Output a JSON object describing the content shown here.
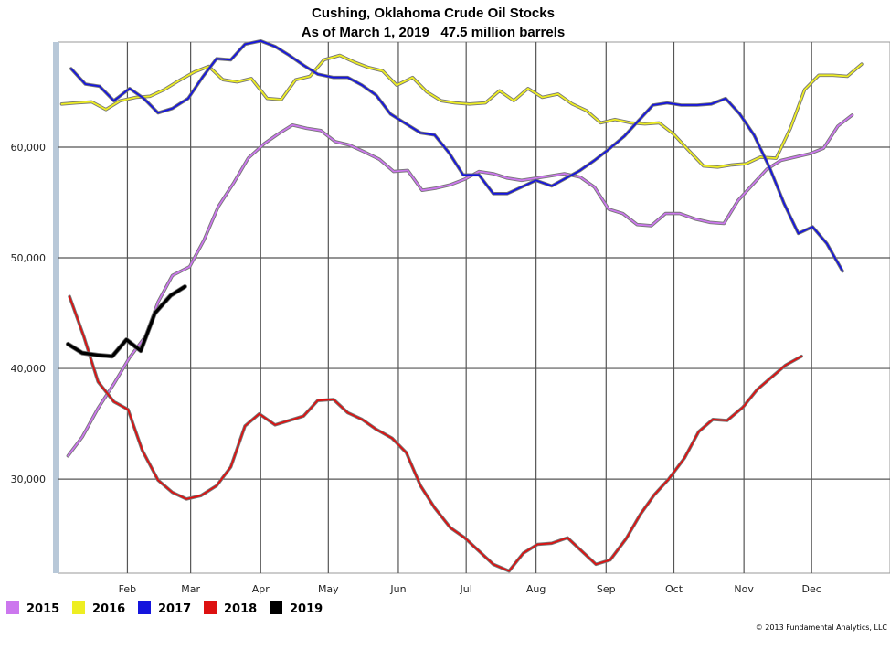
{
  "chart_data": {
    "type": "line",
    "title": "Cushing, Oklahoma Crude Oil Stocks",
    "subtitle": "As of March 1, 2019   47.5 million barrels",
    "credit": "© 2013 Fundamental Analytics, LLC",
    "xlabel": "",
    "ylabel": "",
    "x_unit": "week of year",
    "xlim": [
      0,
      52.6
    ],
    "ylim": [
      21500,
      69500
    ],
    "x_ticks": [
      {
        "label": "Feb",
        "week": 4.36
      },
      {
        "label": "Mar",
        "week": 8.36
      },
      {
        "label": "Apr",
        "week": 12.79
      },
      {
        "label": "May",
        "week": 17.07
      },
      {
        "label": "Jun",
        "week": 21.5
      },
      {
        "label": "Jul",
        "week": 25.79
      },
      {
        "label": "Aug",
        "week": 30.21
      },
      {
        "label": "Sep",
        "week": 34.64
      },
      {
        "label": "Oct",
        "week": 38.93
      },
      {
        "label": "Nov",
        "week": 43.36
      },
      {
        "label": "Dec",
        "week": 47.64
      }
    ],
    "y_ticks": [
      {
        "label": "30,000",
        "value": 30000
      },
      {
        "label": "40,000",
        "value": 40000
      },
      {
        "label": "50,000",
        "value": 50000
      },
      {
        "label": "60,000",
        "value": 60000
      }
    ],
    "grid": true,
    "legend_position": "bottom-left",
    "series": [
      {
        "name": "2015",
        "color": "#cc77ee",
        "values": [
          [
            0.6,
            32100
          ],
          [
            1.5,
            33800
          ],
          [
            2.5,
            36400
          ],
          [
            3.5,
            38600
          ],
          [
            4.5,
            41000
          ],
          [
            5.5,
            42900
          ],
          [
            6.3,
            46000
          ],
          [
            7.2,
            48400
          ],
          [
            8.3,
            49200
          ],
          [
            9.2,
            51600
          ],
          [
            10.1,
            54600
          ],
          [
            11.1,
            56800
          ],
          [
            12.0,
            59000
          ],
          [
            13.0,
            60300
          ],
          [
            13.9,
            61200
          ],
          [
            14.8,
            62000
          ],
          [
            15.7,
            61700
          ],
          [
            16.6,
            61500
          ],
          [
            17.5,
            60500
          ],
          [
            18.4,
            60200
          ],
          [
            19.3,
            59600
          ],
          [
            20.3,
            58900
          ],
          [
            21.2,
            57800
          ],
          [
            22.1,
            57900
          ],
          [
            23.0,
            56100
          ],
          [
            23.9,
            56300
          ],
          [
            24.8,
            56600
          ],
          [
            25.7,
            57100
          ],
          [
            26.6,
            57800
          ],
          [
            27.5,
            57600
          ],
          [
            28.4,
            57200
          ],
          [
            29.3,
            57000
          ],
          [
            30.2,
            57200
          ],
          [
            31.1,
            57400
          ],
          [
            32.0,
            57600
          ],
          [
            33.0,
            57300
          ],
          [
            33.9,
            56400
          ],
          [
            34.8,
            54400
          ],
          [
            35.7,
            54000
          ],
          [
            36.6,
            53000
          ],
          [
            37.5,
            52900
          ],
          [
            38.4,
            54000
          ],
          [
            39.3,
            54000
          ],
          [
            40.3,
            53500
          ],
          [
            41.2,
            53200
          ],
          [
            42.1,
            53100
          ],
          [
            43.0,
            55200
          ],
          [
            43.9,
            56600
          ],
          [
            44.8,
            58000
          ],
          [
            45.7,
            58800
          ],
          [
            46.6,
            59100
          ],
          [
            47.5,
            59400
          ],
          [
            48.4,
            59900
          ],
          [
            49.3,
            61900
          ],
          [
            50.2,
            62900
          ]
        ]
      },
      {
        "name": "2016",
        "color": "#eeee22",
        "values": [
          [
            0.2,
            63900
          ],
          [
            1.1,
            64000
          ],
          [
            2.1,
            64100
          ],
          [
            3.0,
            63400
          ],
          [
            3.9,
            64200
          ],
          [
            4.9,
            64500
          ],
          [
            5.8,
            64600
          ],
          [
            6.7,
            65200
          ],
          [
            7.6,
            66000
          ],
          [
            8.6,
            66800
          ],
          [
            9.5,
            67300
          ],
          [
            10.4,
            66100
          ],
          [
            11.3,
            65900
          ],
          [
            12.2,
            66200
          ],
          [
            13.2,
            64400
          ],
          [
            14.1,
            64300
          ],
          [
            15.0,
            66100
          ],
          [
            15.9,
            66400
          ],
          [
            16.8,
            67900
          ],
          [
            17.8,
            68300
          ],
          [
            18.7,
            67700
          ],
          [
            19.6,
            67200
          ],
          [
            20.5,
            66900
          ],
          [
            21.4,
            65600
          ],
          [
            22.4,
            66300
          ],
          [
            23.3,
            65000
          ],
          [
            24.2,
            64200
          ],
          [
            25.1,
            64000
          ],
          [
            26.0,
            63900
          ],
          [
            27.0,
            64000
          ],
          [
            27.9,
            65100
          ],
          [
            28.8,
            64200
          ],
          [
            29.7,
            65300
          ],
          [
            30.6,
            64500
          ],
          [
            31.6,
            64800
          ],
          [
            32.5,
            63900
          ],
          [
            33.4,
            63300
          ],
          [
            34.3,
            62200
          ],
          [
            35.2,
            62500
          ],
          [
            36.2,
            62200
          ],
          [
            37.1,
            62100
          ],
          [
            38.0,
            62200
          ],
          [
            38.9,
            61200
          ],
          [
            39.8,
            59800
          ],
          [
            40.8,
            58300
          ],
          [
            41.7,
            58200
          ],
          [
            42.6,
            58400
          ],
          [
            43.5,
            58500
          ],
          [
            44.4,
            59100
          ],
          [
            45.4,
            59000
          ],
          [
            46.3,
            61700
          ],
          [
            47.2,
            65200
          ],
          [
            48.1,
            66500
          ],
          [
            49.0,
            66500
          ],
          [
            49.9,
            66400
          ],
          [
            50.8,
            67500
          ]
        ]
      },
      {
        "name": "2017",
        "color": "#1515dd",
        "values": [
          [
            0.8,
            67100
          ],
          [
            1.7,
            65700
          ],
          [
            2.6,
            65500
          ],
          [
            3.5,
            64200
          ],
          [
            4.5,
            65300
          ],
          [
            5.4,
            64400
          ],
          [
            6.3,
            63100
          ],
          [
            7.2,
            63500
          ],
          [
            8.2,
            64400
          ],
          [
            9.1,
            66300
          ],
          [
            10.0,
            68000
          ],
          [
            10.9,
            67900
          ],
          [
            11.8,
            69300
          ],
          [
            12.8,
            69600
          ],
          [
            13.7,
            69100
          ],
          [
            14.6,
            68300
          ],
          [
            15.5,
            67400
          ],
          [
            16.4,
            66600
          ],
          [
            17.4,
            66300
          ],
          [
            18.3,
            66300
          ],
          [
            19.2,
            65600
          ],
          [
            20.1,
            64700
          ],
          [
            21.0,
            63000
          ],
          [
            22.0,
            62100
          ],
          [
            22.9,
            61300
          ],
          [
            23.8,
            61100
          ],
          [
            24.7,
            59500
          ],
          [
            25.6,
            57500
          ],
          [
            26.6,
            57500
          ],
          [
            27.5,
            55800
          ],
          [
            28.4,
            55800
          ],
          [
            29.3,
            56400
          ],
          [
            30.2,
            57000
          ],
          [
            31.2,
            56500
          ],
          [
            32.1,
            57200
          ],
          [
            33.0,
            57900
          ],
          [
            33.9,
            58800
          ],
          [
            34.8,
            59800
          ],
          [
            35.8,
            61000
          ],
          [
            36.7,
            62400
          ],
          [
            37.6,
            63800
          ],
          [
            38.5,
            64000
          ],
          [
            39.4,
            63800
          ],
          [
            40.4,
            63800
          ],
          [
            41.3,
            63900
          ],
          [
            42.2,
            64400
          ],
          [
            43.1,
            63000
          ],
          [
            44.0,
            61100
          ],
          [
            45.0,
            58100
          ],
          [
            45.9,
            54900
          ],
          [
            46.8,
            52200
          ],
          [
            47.7,
            52800
          ],
          [
            48.6,
            51300
          ],
          [
            49.6,
            48800
          ]
        ]
      },
      {
        "name": "2018",
        "color": "#dd1111",
        "values": [
          [
            0.7,
            46500
          ],
          [
            1.6,
            42900
          ],
          [
            2.5,
            38800
          ],
          [
            3.5,
            37000
          ],
          [
            4.4,
            36300
          ],
          [
            5.3,
            32600
          ],
          [
            6.3,
            29900
          ],
          [
            7.2,
            28800
          ],
          [
            8.1,
            28200
          ],
          [
            9.0,
            28500
          ],
          [
            10.0,
            29400
          ],
          [
            10.9,
            31100
          ],
          [
            11.8,
            34800
          ],
          [
            12.7,
            35900
          ],
          [
            13.7,
            34900
          ],
          [
            14.6,
            35300
          ],
          [
            15.5,
            35700
          ],
          [
            16.4,
            37100
          ],
          [
            17.4,
            37200
          ],
          [
            18.3,
            36000
          ],
          [
            19.2,
            35400
          ],
          [
            20.1,
            34500
          ],
          [
            21.1,
            33700
          ],
          [
            22.0,
            32400
          ],
          [
            22.9,
            29400
          ],
          [
            23.8,
            27400
          ],
          [
            24.8,
            25600
          ],
          [
            25.7,
            24700
          ],
          [
            26.6,
            23500
          ],
          [
            27.5,
            22300
          ],
          [
            28.5,
            21700
          ],
          [
            29.4,
            23300
          ],
          [
            30.3,
            24100
          ],
          [
            31.2,
            24200
          ],
          [
            32.2,
            24700
          ],
          [
            33.1,
            23500
          ],
          [
            34.0,
            22300
          ],
          [
            34.9,
            22700
          ],
          [
            35.9,
            24600
          ],
          [
            36.8,
            26800
          ],
          [
            37.7,
            28600
          ],
          [
            38.6,
            30000
          ],
          [
            39.6,
            31900
          ],
          [
            40.5,
            34300
          ],
          [
            41.4,
            35400
          ],
          [
            42.3,
            35300
          ],
          [
            43.3,
            36500
          ],
          [
            44.2,
            38100
          ],
          [
            45.1,
            39200
          ],
          [
            46.0,
            40300
          ],
          [
            47.0,
            41100
          ]
        ]
      },
      {
        "name": "2019",
        "color": "#000000",
        "values": [
          [
            0.6,
            42200
          ],
          [
            1.5,
            41400
          ],
          [
            2.5,
            41200
          ],
          [
            3.4,
            41100
          ],
          [
            4.3,
            42600
          ],
          [
            5.2,
            41600
          ],
          [
            6.1,
            45000
          ],
          [
            7.1,
            46600
          ],
          [
            8.0,
            47400
          ]
        ]
      }
    ]
  }
}
